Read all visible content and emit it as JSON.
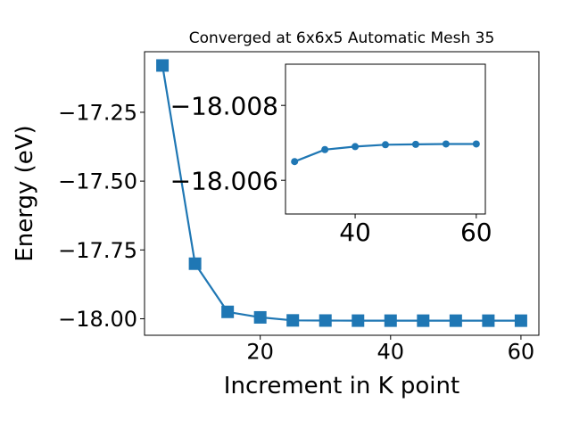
{
  "chart_data": [
    {
      "type": "line",
      "title": "Converged at 6x6x5 Automatic Mesh 35",
      "xlabel": "Increment in K point",
      "ylabel": "Energy (eV)",
      "xlim": [
        2.25,
        62.75
      ],
      "ylim": [
        -18.06,
        -17.03
      ],
      "xticks": [
        20,
        40,
        60
      ],
      "yticks": [
        -17.25,
        -17.5,
        -17.75,
        -18.0
      ],
      "ytick_labels": [
        "−17.25",
        "−17.50",
        "−17.75",
        "−18.00"
      ],
      "grid": false,
      "marker": "square",
      "series": [
        {
          "color": "#1f77b4",
          "x": [
            5,
            10,
            15,
            20,
            25,
            30,
            35,
            40,
            45,
            50,
            55,
            60
          ],
          "y": [
            -17.08,
            -17.8,
            -17.975,
            -17.995,
            -18.006,
            -18.0065,
            -18.00682,
            -18.0069,
            -18.00695,
            -18.00696,
            -18.00697,
            -18.00697
          ]
        }
      ]
    },
    {
      "type": "line",
      "title": "",
      "xlabel": "",
      "ylabel": "",
      "xlim": [
        28.5,
        61.5
      ],
      "ylim": [
        -18.0051,
        -18.0091
      ],
      "xticks": [
        40,
        60
      ],
      "yticks": [
        -18.008,
        -18.006
      ],
      "ytick_labels": [
        "−18.008",
        "−18.006"
      ],
      "grid": false,
      "marker": "circle",
      "series": [
        {
          "color": "#1f77b4",
          "x": [
            30,
            35,
            40,
            45,
            50,
            55,
            60
          ],
          "y": [
            -18.0065,
            -18.00682,
            -18.0069,
            -18.00695,
            -18.00696,
            -18.00697,
            -18.00697
          ]
        }
      ]
    }
  ]
}
